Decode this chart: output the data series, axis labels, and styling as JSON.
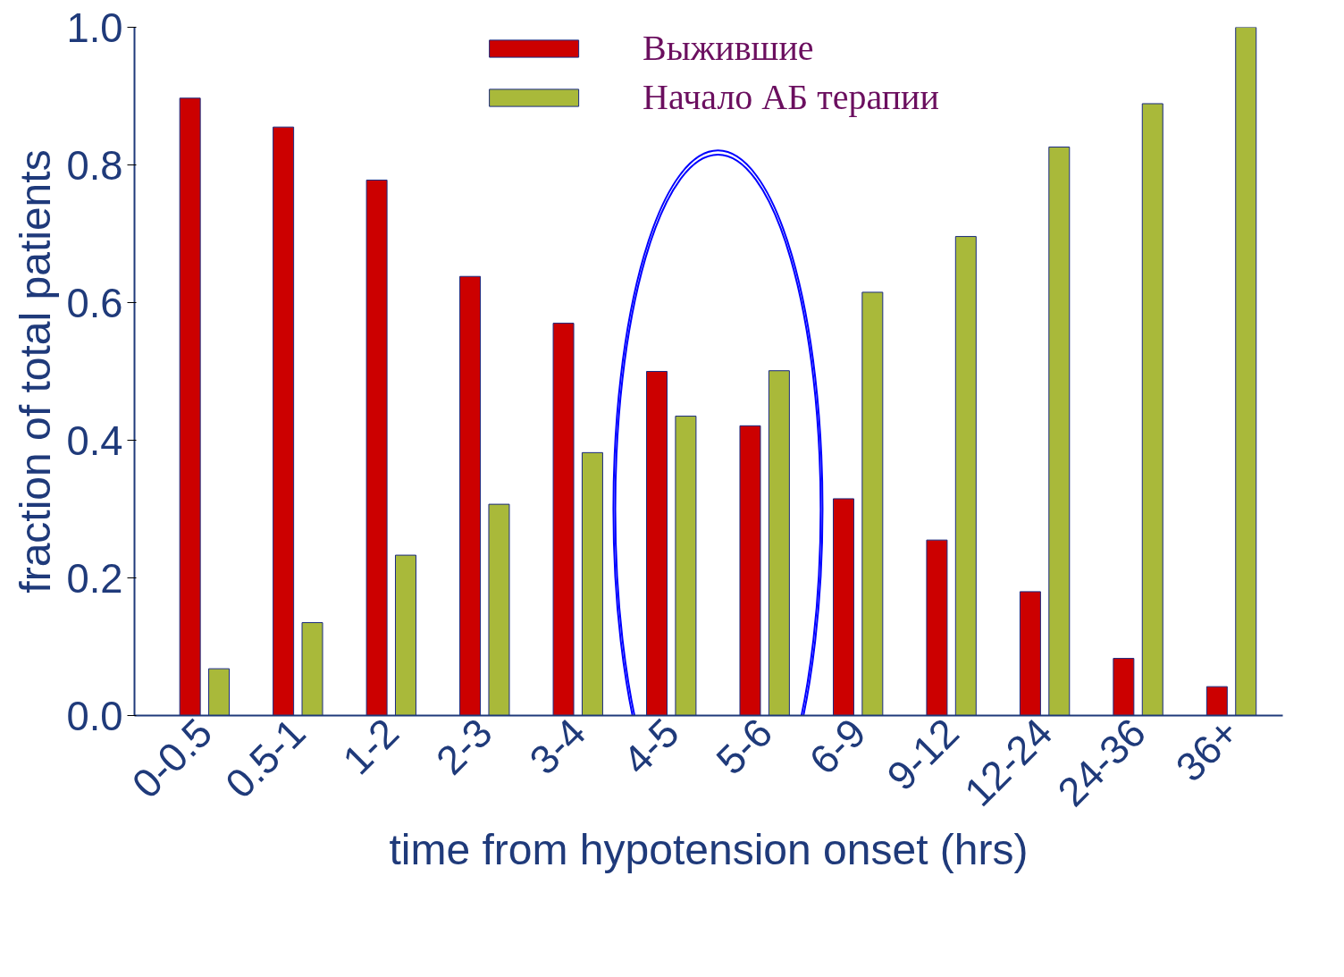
{
  "chart_data": {
    "type": "bar",
    "xlabel": "time from hypotension onset (hrs)",
    "ylabel": "fraction of total patients",
    "categories": [
      "0-0.5",
      "0.5-1",
      "1-2",
      "2-3",
      "3-4",
      "4-5",
      "5-6",
      "6-9",
      "9-12",
      "12-24",
      "24-36",
      "36+"
    ],
    "series": [
      {
        "name": "Выжившие",
        "color": "#cc0000",
        "values": [
          0.897,
          0.855,
          0.778,
          0.638,
          0.57,
          0.5,
          0.421,
          0.315,
          0.255,
          0.18,
          0.083,
          0.042
        ]
      },
      {
        "name": "Начало АБ терапии",
        "color": "#a9b93a",
        "values": [
          0.068,
          0.135,
          0.233,
          0.307,
          0.382,
          0.435,
          0.501,
          0.615,
          0.696,
          0.826,
          0.889,
          1.0
        ]
      }
    ],
    "ylim": [
      0,
      1.0
    ],
    "yticks": [
      {
        "value": 0,
        "label": "0.0"
      },
      {
        "value": 0.2,
        "label": "0.2"
      },
      {
        "value": 0.4,
        "label": "0.4"
      },
      {
        "value": 0.6,
        "label": "0.6"
      },
      {
        "value": 0.8,
        "label": "0.8"
      },
      {
        "value": 1.0,
        "label": "1.0"
      }
    ],
    "grid": false,
    "legend": "top"
  }
}
